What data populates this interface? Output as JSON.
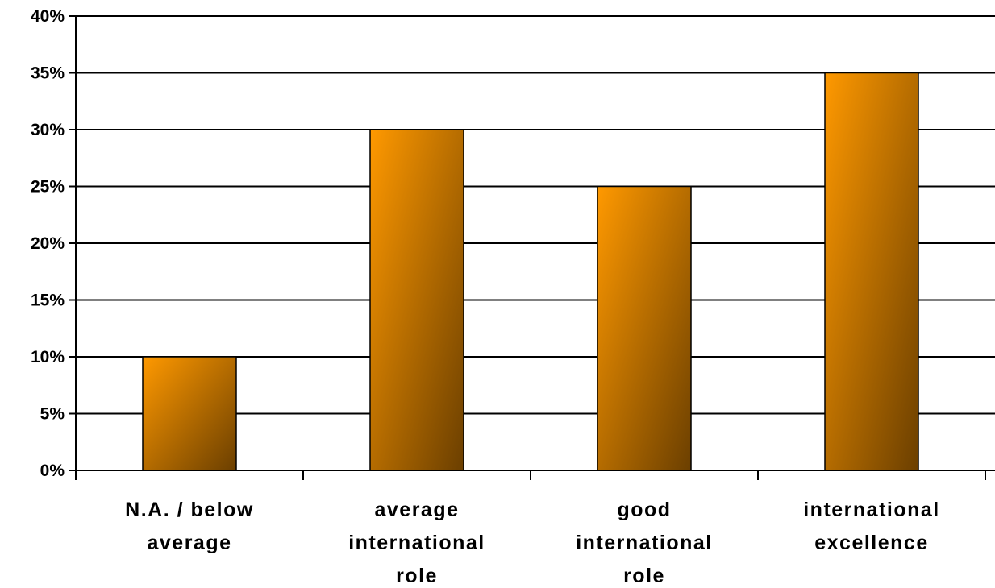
{
  "chart_data": {
    "type": "bar",
    "categories": [
      [
        "N.A. / below",
        "average"
      ],
      [
        "average",
        "international",
        "role"
      ],
      [
        "good",
        "international",
        "role"
      ],
      [
        "international",
        "excellence"
      ]
    ],
    "values": [
      10,
      30,
      25,
      35
    ],
    "ylim": [
      0,
      40
    ],
    "ytick_step": 5,
    "ytick_suffix": "%",
    "grid": true,
    "legend": "none",
    "colors": {
      "bar_light": "#ff9900",
      "bar_dark": "#6b3f00",
      "grid": "#000000",
      "axis": "#000000"
    }
  }
}
